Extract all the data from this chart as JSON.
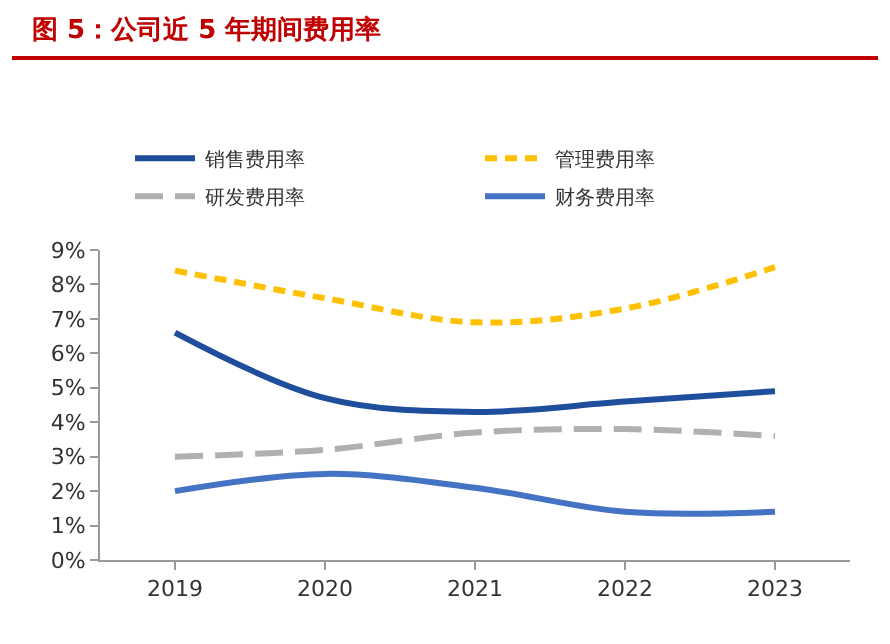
{
  "chart_data": {
    "type": "line",
    "title": "图 5：公司近 5 年期间费用率",
    "categories": [
      "2019",
      "2020",
      "2021",
      "2022",
      "2023"
    ],
    "series": [
      {
        "name": "销售费用率",
        "color": "#1f4e9c",
        "line_style": "solid",
        "values": [
          6.6,
          4.7,
          4.3,
          4.6,
          4.9
        ]
      },
      {
        "name": "管理费用率",
        "color": "#ffc000",
        "line_style": "dashed",
        "values": [
          8.4,
          7.6,
          6.9,
          7.3,
          8.5
        ]
      },
      {
        "name": "研发费用率",
        "color": "#b0b0b0",
        "line_style": "longdash",
        "values": [
          3.0,
          3.2,
          3.7,
          3.8,
          3.6
        ]
      },
      {
        "name": "财务费用率",
        "color": "#4472c4",
        "line_style": "solid",
        "values": [
          2.0,
          2.5,
          2.1,
          1.4,
          1.4
        ]
      }
    ],
    "ylim": [
      0,
      9
    ],
    "yticks": [
      {
        "value": 0,
        "label": "0%"
      },
      {
        "value": 1,
        "label": "1%"
      },
      {
        "value": 2,
        "label": "2%"
      },
      {
        "value": 3,
        "label": "3%"
      },
      {
        "value": 4,
        "label": "4%"
      },
      {
        "value": 5,
        "label": "5%"
      },
      {
        "value": 6,
        "label": "6%"
      },
      {
        "value": 7,
        "label": "7%"
      },
      {
        "value": 8,
        "label": "8%"
      },
      {
        "value": 9,
        "label": "9%"
      }
    ],
    "grid": false,
    "legend": "top",
    "marker": "none"
  }
}
